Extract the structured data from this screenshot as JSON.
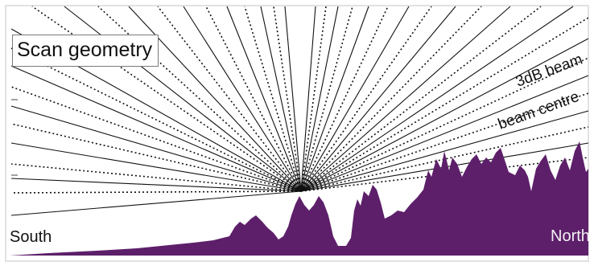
{
  "diagram": {
    "title": "Scan geometry",
    "labels": {
      "south": "South",
      "north": "North",
      "beam_edge": "3dB beam",
      "beam_centre": "beam centre"
    },
    "legend_line_styles": {
      "beam_centre": "solid",
      "beam_edge": "dotted"
    },
    "colors": {
      "terrain_fill": "#5d1f6a",
      "beam_line": "#111111",
      "frame": "#d8d8d8",
      "background": "#ffffff"
    }
  }
}
